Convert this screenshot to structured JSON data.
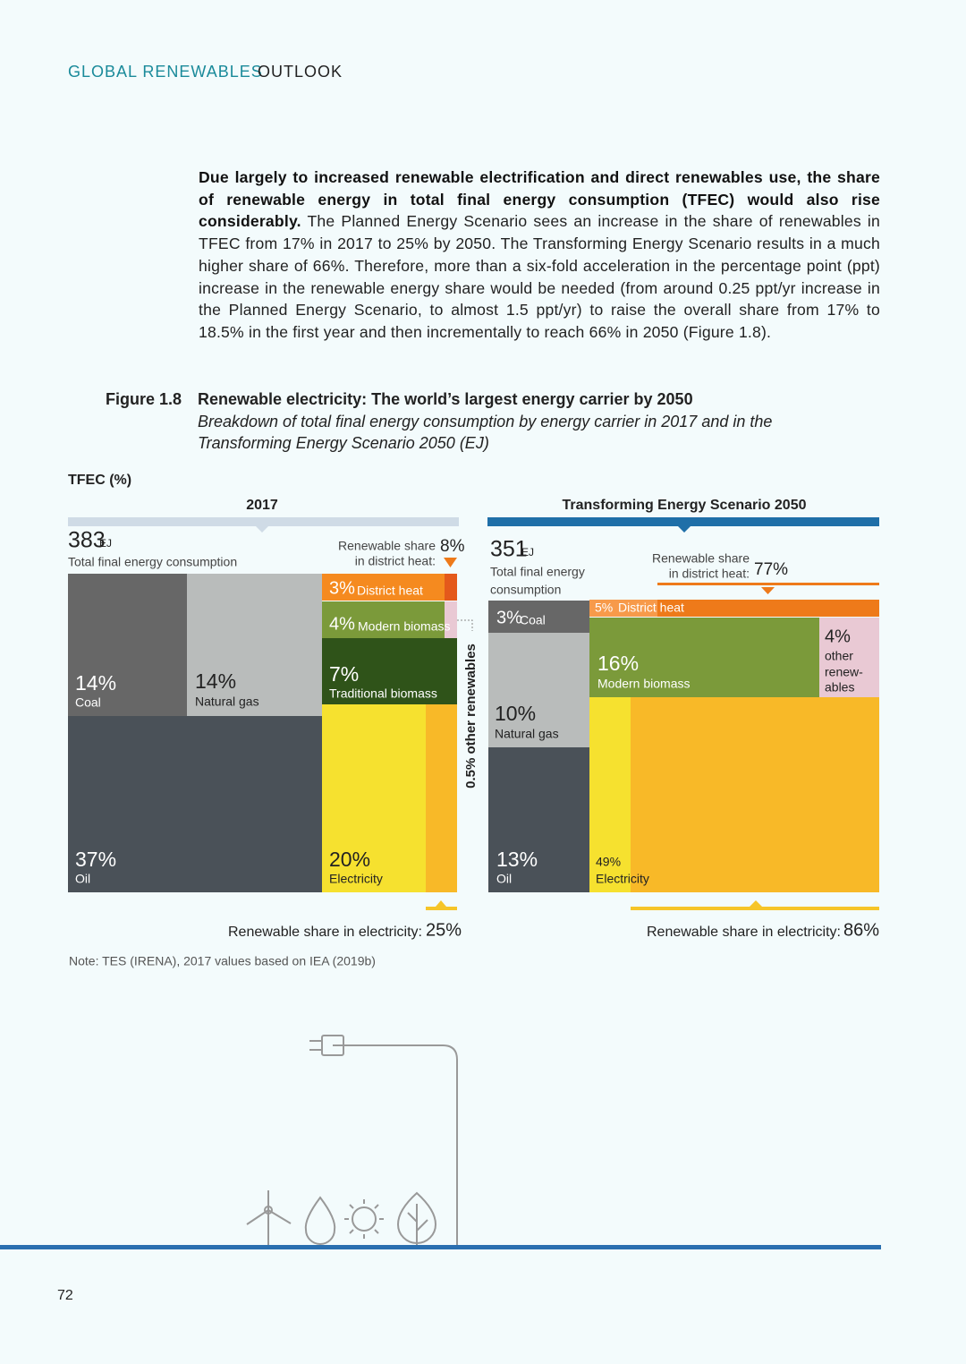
{
  "header": {
    "title_part1": "GLOBAL RENEWABLES",
    "title_part2": "OUTLOOK"
  },
  "paragraph": {
    "bold": "Due largely to increased renewable electrification and direct renewables use, the share of renewable energy in total final energy consumption (TFEC) would also rise considerably.",
    "text": "The Planned Energy Scenario sees an increase in the share of renewables in TFEC from 17% in 2017 to 25% by 2050. The Transforming Energy Scenario results in a much higher share of 66%. Therefore, more than a six-fold acceleration in the percentage point (ppt) increase in the renewable energy share would be needed (from around 0.25 ppt/yr increase in the Planned Energy Scenario, to almost 1.5 ppt/yr) to raise the overall share from 17% to 18.5% in the first year and then incrementally to reach 66% in 2050 (Figure 1.8)."
  },
  "figure": {
    "number": "Figure 1.8",
    "title": "Renewable electricity: The world’s largest energy carrier by 2050",
    "subtitle": [
      "Breakdown of total final energy consumption by energy carrier in 2017 and in the",
      "Transforming Energy Scenario 2050 (EJ)"
    ],
    "axis_label": "TFEC (%)",
    "panels": [
      {
        "heading": "2017",
        "total": "383",
        "unit": "EJ",
        "total_label": [
          "Total final energy consumption"
        ],
        "district_heat_label": [
          "Renewable share",
          "in district heat:"
        ],
        "district_heat_share": "8%",
        "segments": [
          {
            "share": "14%",
            "name": "Coal"
          },
          {
            "share": "14%",
            "name": "Natural gas"
          },
          {
            "share": "37%",
            "name": "Oil"
          },
          {
            "share": "3%",
            "name": "District heat"
          },
          {
            "share": "4%",
            "name": "Modern biomass"
          },
          {
            "share": "7%",
            "name": "Traditional biomass"
          },
          {
            "share": "20%",
            "name": "Electricity"
          }
        ],
        "side_label": "0.5% other renewables",
        "electricity_label": "Renewable share in electricity:",
        "electricity_share": "25%"
      },
      {
        "heading": "Transforming Energy Scenario 2050",
        "total": "351",
        "unit": "EJ",
        "total_label": [
          "Total final energy",
          "consumption"
        ],
        "district_heat_label": [
          "Renewable share",
          "in district heat:"
        ],
        "district_heat_share": "77%",
        "segments": [
          {
            "share": "3%",
            "name": "Coal"
          },
          {
            "share": "10%",
            "name": "Natural gas"
          },
          {
            "share": "13%",
            "name": "Oil"
          },
          {
            "share": "5%",
            "name": "District heat"
          },
          {
            "share": "16%",
            "name": "Modern biomass"
          },
          {
            "share": "4%",
            "name": [
              "other",
              "renew-",
              "ables"
            ]
          },
          {
            "share": "49%",
            "name": "Electricity"
          }
        ],
        "electricity_label": "Renewable share in electricity:",
        "electricity_share": "86%"
      }
    ],
    "note": "Note: TES (IRENA), 2017 values based on IEA (2019b)"
  },
  "page_number": "72"
}
